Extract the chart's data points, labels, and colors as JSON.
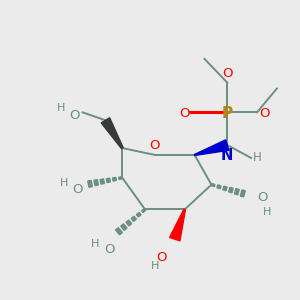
{
  "background_color": "#ebebeb",
  "figsize": [
    3.0,
    3.0
  ],
  "dpi": 100,
  "colors": {
    "bond": "#6b9080",
    "O": "#ff0000",
    "N": "#0000cc",
    "P": "#b8860b",
    "H": "#6b9080",
    "stereo_dash": "#6b9080",
    "stereo_wedge_dark": "#2a2a2a"
  }
}
